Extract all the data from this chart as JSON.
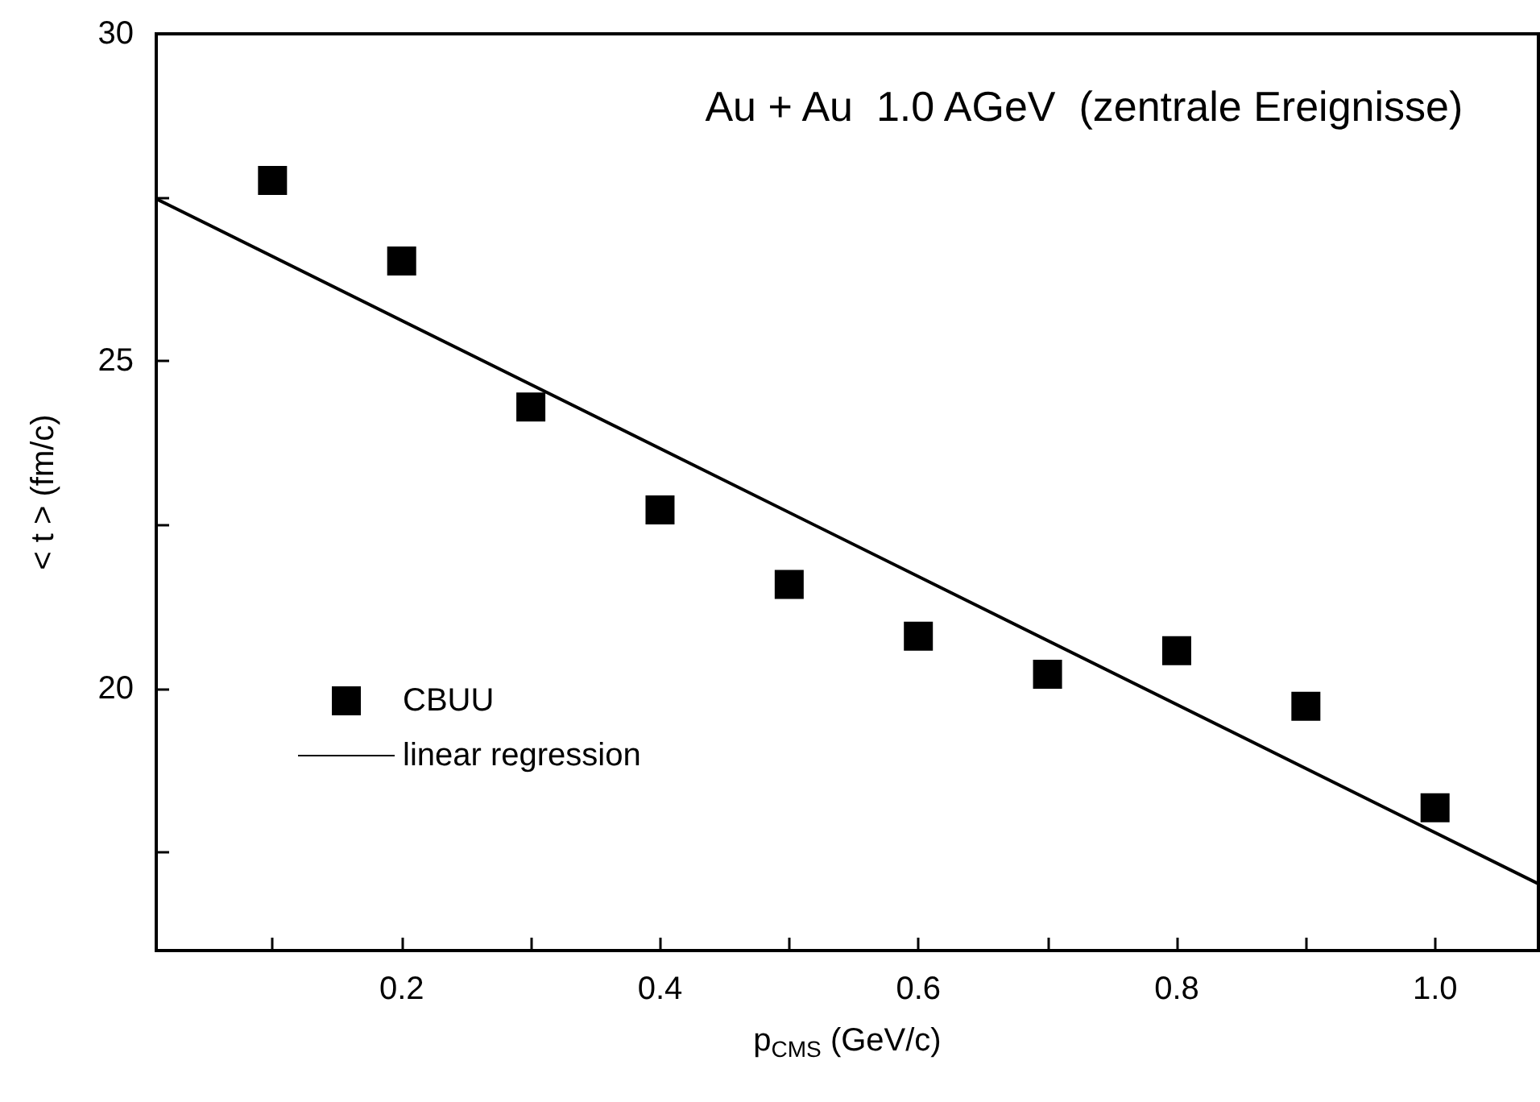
{
  "chart_data": {
    "type": "scatter",
    "title": "Au + Au  1.0 AGeV  (zentrale Ereignisse)",
    "xlabel": "p$_{CMS}$ (GeV/c)",
    "ylabel": "< t > (fm/c)",
    "series": [
      {
        "name": "CBUU",
        "marker": "square",
        "color": "#000000",
        "x": [
          0.1,
          0.2,
          0.3,
          0.4,
          0.5,
          0.6,
          0.7,
          0.8,
          0.9,
          1.0
        ],
        "values": [
          27.76,
          26.53,
          24.3,
          22.73,
          21.59,
          20.8,
          20.22,
          20.58,
          19.73,
          18.18
        ]
      },
      {
        "name": "linear regression",
        "type": "line",
        "marker": "none",
        "line_style": "solid",
        "color": "#000000",
        "x": [
          0.01,
          1.08
        ],
        "values": [
          27.48,
          17.02
        ]
      }
    ],
    "xlim": [
      0.01,
      1.08
    ],
    "ylim": [
      16,
      30
    ],
    "xticks": [
      {
        "value": 0.1,
        "label": null
      },
      0.2,
      {
        "value": 0.3,
        "label": null
      },
      0.4,
      {
        "value": 0.5,
        "label": null
      },
      0.6,
      {
        "value": 0.7,
        "label": null
      },
      0.8,
      {
        "value": 0.9,
        "label": null
      },
      {
        "value": 1.0,
        "label": "1.0"
      }
    ],
    "yticks": [
      {
        "value": 17.5,
        "label": null
      },
      20,
      {
        "value": 22.5,
        "label": null
      },
      25,
      {
        "value": 27.5,
        "label": null
      },
      30
    ],
    "grid": false,
    "legend": "left"
  }
}
